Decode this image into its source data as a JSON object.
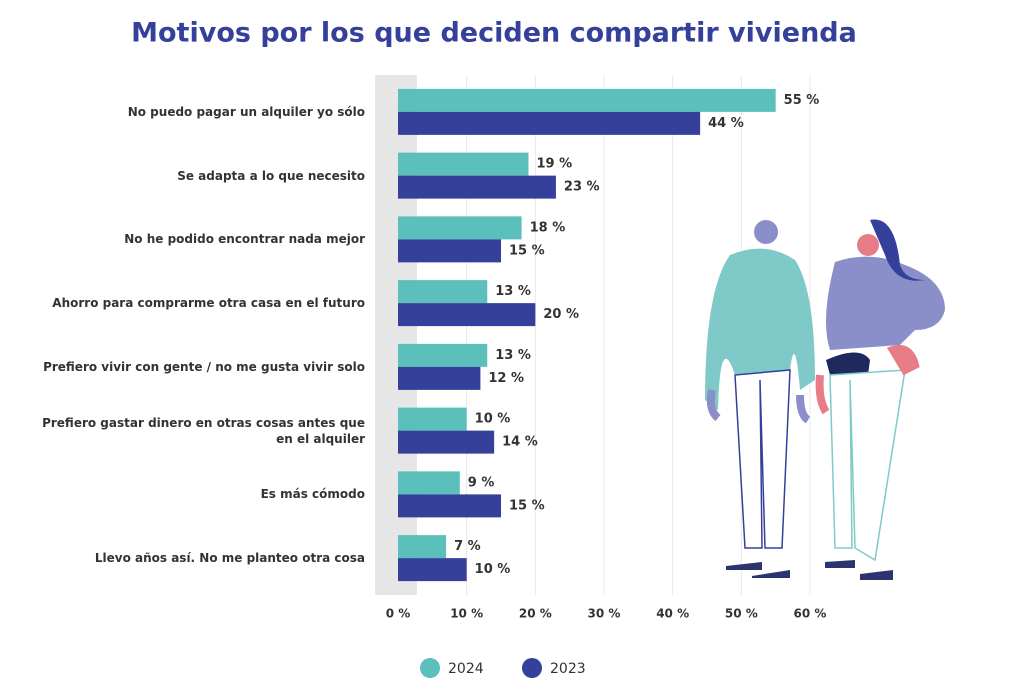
{
  "chart_data": {
    "type": "bar",
    "orientation": "horizontal",
    "title": "Motivos por los que deciden compartir vivienda",
    "categories": [
      "No puedo pagar un alquiler yo sólo",
      "Se adapta a lo que necesito",
      "No he podido encontrar nada mejor",
      "Ahorro para comprarme otra casa en el futuro",
      "Prefiero vivir con gente / no me gusta vivir solo",
      "Prefiero gastar dinero en otras cosas antes que en el alquiler",
      "Es más cómodo",
      "Llevo años así. No me planteo otra cosa"
    ],
    "series": [
      {
        "name": "2024",
        "color": "#5bbfbb",
        "values": [
          55,
          19,
          18,
          13,
          13,
          10,
          9,
          7
        ],
        "value_labels": [
          "55 %",
          "19 %",
          "18 %",
          "13 %",
          "13 %",
          "10 %",
          "9 %",
          "7 %"
        ]
      },
      {
        "name": "2023",
        "color": "#34409a",
        "values": [
          44,
          23,
          15,
          20,
          12,
          14,
          15,
          10
        ],
        "value_labels": [
          "44 %",
          "23 %",
          "15 %",
          "20 %",
          "12 %",
          "14 %",
          "15 %",
          "10 %"
        ]
      }
    ],
    "xlim": [
      0,
      60
    ],
    "xticks": [
      {
        "value": 0,
        "label": "0 %"
      },
      {
        "value": 10,
        "label": "10 %"
      },
      {
        "value": 20,
        "label": "20 %"
      },
      {
        "value": 30,
        "label": "30 %"
      },
      {
        "value": 40,
        "label": "40 %"
      },
      {
        "value": 50,
        "label": "50 %"
      },
      {
        "value": 60,
        "label": "60 %"
      }
    ],
    "grid": true,
    "legend": "bottom"
  }
}
